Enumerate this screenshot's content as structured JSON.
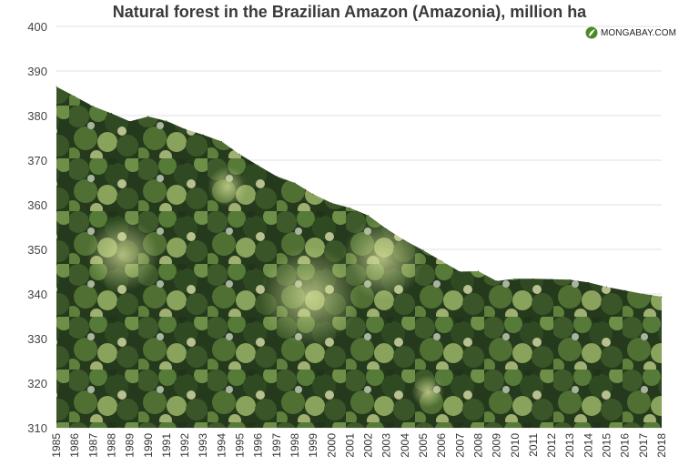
{
  "brand": {
    "label": "MONGABAY.COM",
    "icon": "mongabay-logo-icon"
  },
  "chart_data": {
    "type": "area",
    "title": "Natural forest in the Brazilian Amazon (Amazonia), million ha",
    "xlabel": "",
    "ylabel": "",
    "ylim": [
      310,
      400
    ],
    "yticks": [
      310,
      320,
      330,
      340,
      350,
      360,
      370,
      380,
      390,
      400
    ],
    "grid": true,
    "fill": "aerial photograph of rainforest canopy",
    "x": [
      "1985",
      "1986",
      "1987",
      "1988",
      "1989",
      "1990",
      "1991",
      "1992",
      "1993",
      "1994",
      "1995",
      "1996",
      "1997",
      "1998",
      "1999",
      "2000",
      "2001",
      "2002",
      "2003",
      "2004",
      "2005",
      "2006",
      "2007",
      "2008",
      "2009",
      "2010",
      "2011",
      "2012",
      "2013",
      "2014",
      "2015",
      "2016",
      "2017",
      "2018"
    ],
    "values": [
      386.5,
      384.3,
      382.1,
      380.5,
      378.7,
      379.8,
      378.8,
      377.0,
      375.7,
      374.2,
      371.3,
      368.8,
      366.4,
      364.9,
      362.4,
      360.4,
      359.3,
      357.6,
      354.6,
      352.0,
      349.8,
      347.4,
      345.0,
      345.1,
      342.9,
      343.4,
      343.4,
      343.3,
      343.2,
      342.6,
      341.6,
      340.8,
      340.0,
      339.4
    ]
  }
}
